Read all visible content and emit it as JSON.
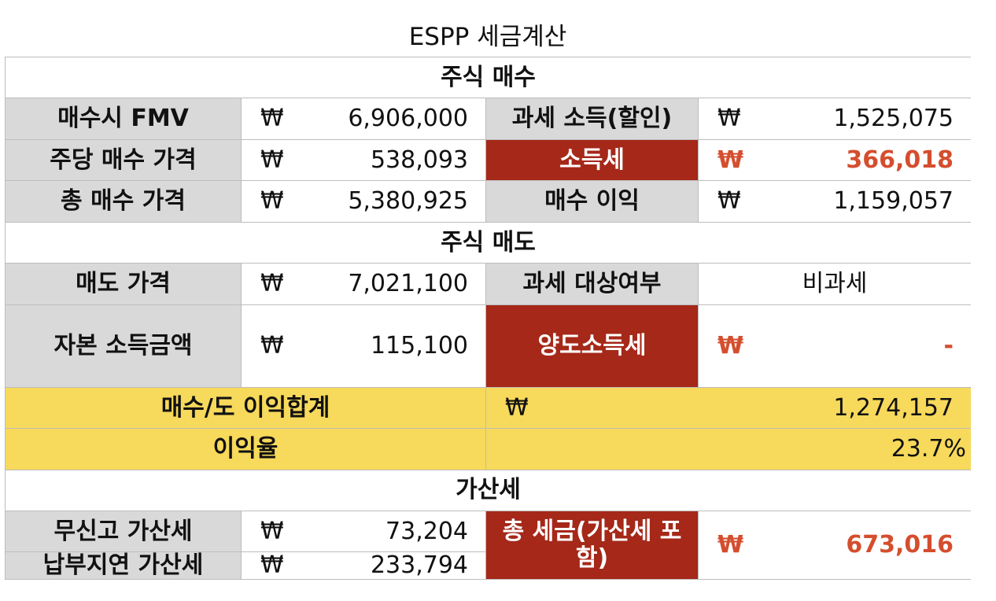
{
  "title": "ESPP 세금계산",
  "currency_symbol": "₩",
  "sections": {
    "purchase": "주식 매수",
    "sale": "주식 매도",
    "penalty": "가산세"
  },
  "purchase": {
    "fmv_label": "매수시 FMV",
    "fmv_value": "6,906,000",
    "taxable_income_label": "과세 소득(할인)",
    "taxable_income_value": "1,525,075",
    "price_per_share_label": "주당 매수 가격",
    "price_per_share_value": "538,093",
    "income_tax_label": "소득세",
    "income_tax_value": "366,018",
    "total_purchase_label": "총 매수 가격",
    "total_purchase_value": "5,380,925",
    "purchase_gain_label": "매수 이익",
    "purchase_gain_value": "1,159,057"
  },
  "sale": {
    "sale_price_label": "매도 가격",
    "sale_price_value": "7,021,100",
    "taxable_status_label": "과세 대상여부",
    "taxable_status_value": "비과세",
    "capital_gain_label": "자본 소득금액",
    "capital_gain_value": "115,100",
    "capital_gains_tax_label": "양도소득세",
    "capital_gains_tax_value": "-"
  },
  "summary": {
    "total_gain_label": "매수/도 이익합계",
    "total_gain_value": "1,274,157",
    "return_rate_label": "이익율",
    "return_rate_value": "23.7%"
  },
  "penalty": {
    "unfiled_label": "무신고 가산세",
    "unfiled_value": "73,204",
    "late_payment_label": "납부지연 가산세",
    "late_payment_value": "233,794",
    "total_tax_label": "총 세금(가산세 포함)",
    "total_tax_value": "673,016"
  },
  "colors": {
    "label_bg": "#d9d9d9",
    "highlight_bg": "#a52819",
    "highlight_text": "#d44e2e",
    "summary_bg": "#f7d95b"
  }
}
